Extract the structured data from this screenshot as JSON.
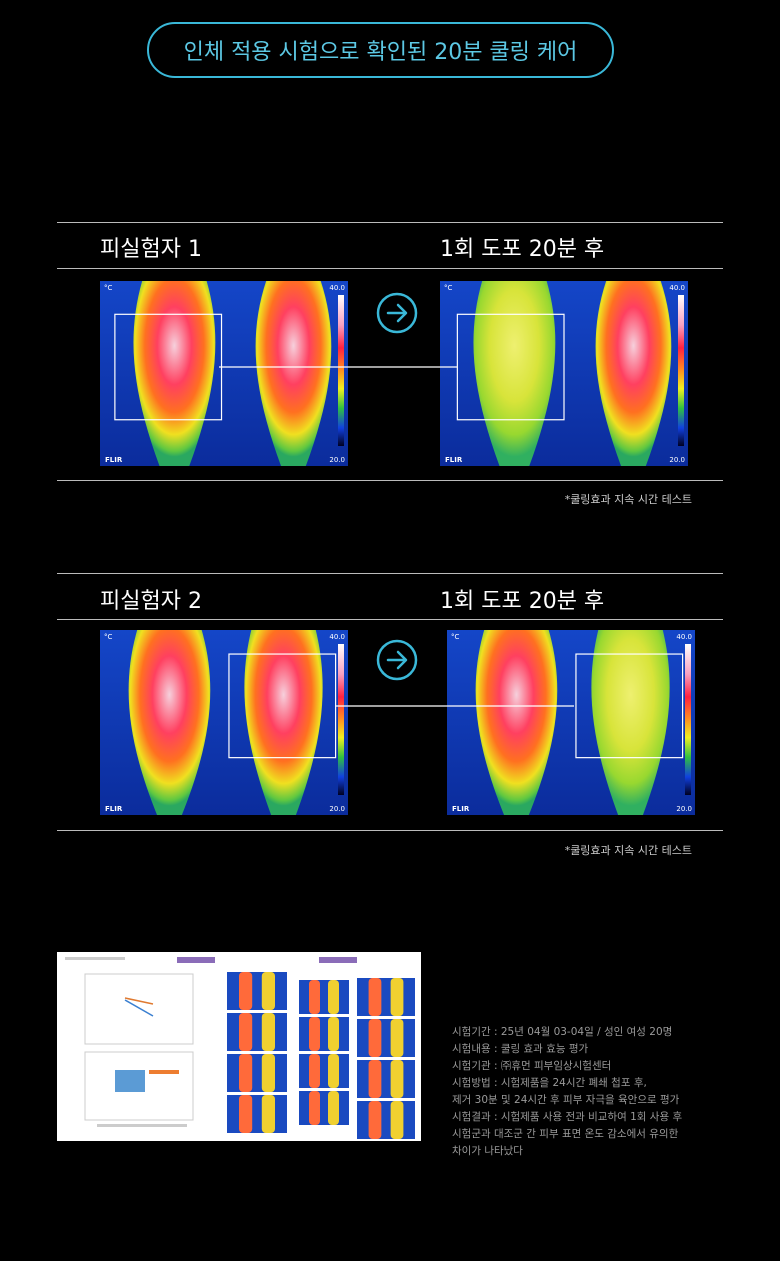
{
  "title": "인체 적용 시험으로 확인된 20분 쿨링 케어",
  "subjects": [
    {
      "label": "피실험자 1",
      "after": "1회 도포 20분 후",
      "note": "*쿨링효과 지속 시간 테스트"
    },
    {
      "label": "피실험자 2",
      "after": "1회 도포 20분 후",
      "note": "*쿨링효과 지속 시간 테스트"
    }
  ],
  "thermal": {
    "unit": "°C",
    "max": "40.0",
    "min": "20.0",
    "brand": "FLIR"
  },
  "test_info": [
    "시험기간 : 25년 04월 03-04일 / 성인 여성 20명",
    "시험내용 : 쿨링 효과 효능 평가",
    "시험기관 : ㈜휴먼 피부임상시험센터",
    "시험방법 : 시험제품을 24시간 폐쇄 첩포 후,",
    "제거 30분 및 24시간 후 피부 자극을 육안으로 평가",
    "시험결과 : 시험제품 사용 전과 비교하여 1회 사용 후",
    "시험군과 대조군 간 피부 표면 온도 감소에서 유의한",
    "차이가 나타났다"
  ]
}
